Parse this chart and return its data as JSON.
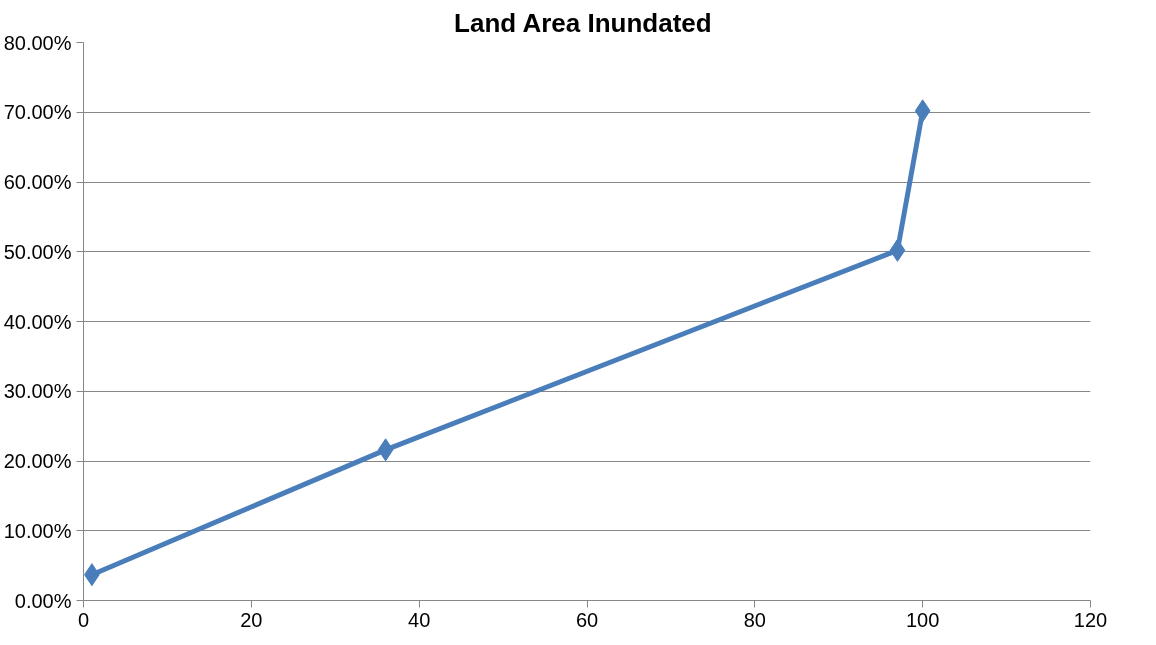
{
  "chart_data": {
    "type": "line",
    "title": "Land Area  Inundated",
    "x": [
      1,
      36,
      97,
      100
    ],
    "series": [
      {
        "color": "#4a7ebb",
        "values": [
          3.7,
          21.6,
          50.2,
          70.2
        ]
      }
    ],
    "xlim": [
      0,
      120
    ],
    "xticks": [
      0,
      20,
      40,
      60,
      80,
      100,
      120
    ],
    "ylim": [
      0,
      80
    ],
    "yticks": [
      {
        "value": 0,
        "label": "0.00%"
      },
      {
        "value": 10,
        "label": "10.00%"
      },
      {
        "value": 20,
        "label": "20.00%"
      },
      {
        "value": 30,
        "label": "30.00%"
      },
      {
        "value": 40,
        "label": "40.00%"
      },
      {
        "value": 50,
        "label": "50.00%"
      },
      {
        "value": 60,
        "label": "60.00%"
      },
      {
        "value": 70,
        "label": "70.00%"
      },
      {
        "value": 80,
        "label": "80.00%"
      }
    ],
    "grid": "y",
    "marker": "diamond",
    "line_style": "solid"
  }
}
